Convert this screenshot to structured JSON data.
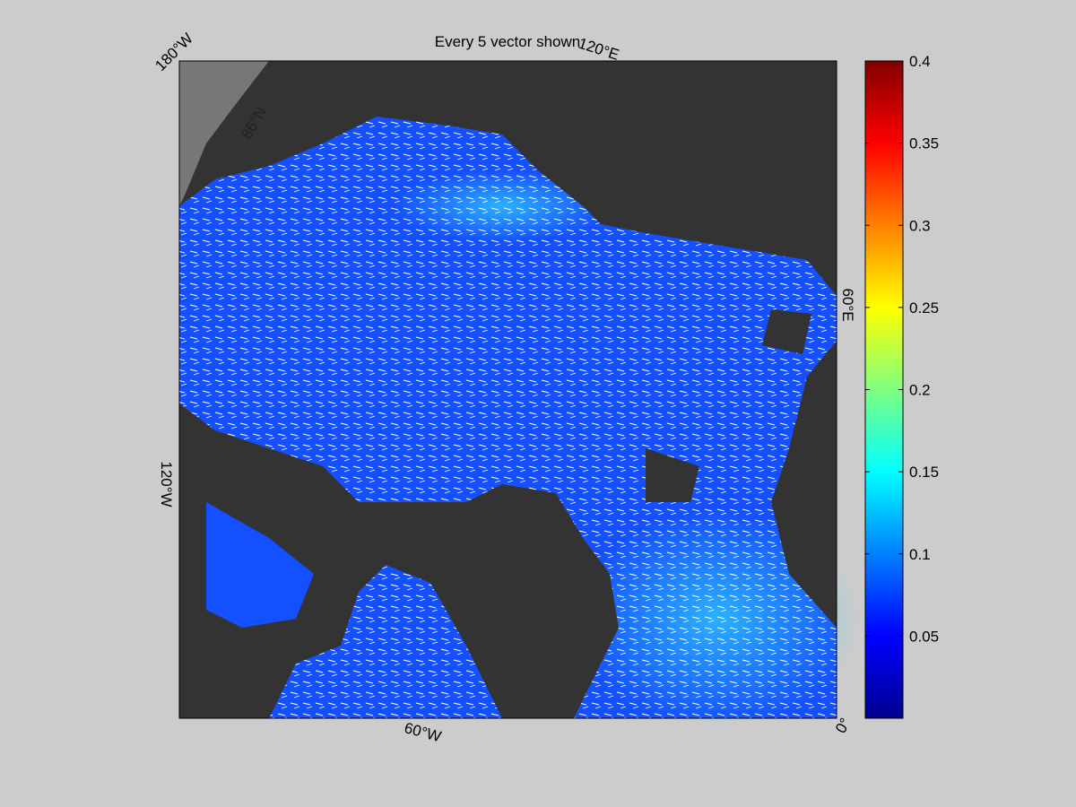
{
  "title": "Every 5 vector shown",
  "map_labels": [
    "180°W",
    "120°E",
    "60°E",
    "0°",
    "60°W",
    "120°W",
    "86°N"
  ],
  "colorbar": {
    "ylim": [
      0,
      0.4
    ],
    "yticks": [
      0.05,
      0.1,
      0.15,
      0.2,
      0.25,
      0.3,
      0.35,
      0.4
    ],
    "colormap": [
      "#00008f",
      "#0000ff",
      "#0080ff",
      "#00ffff",
      "#80ff80",
      "#ffff00",
      "#ff8000",
      "#ff0000",
      "#800000"
    ]
  }
}
